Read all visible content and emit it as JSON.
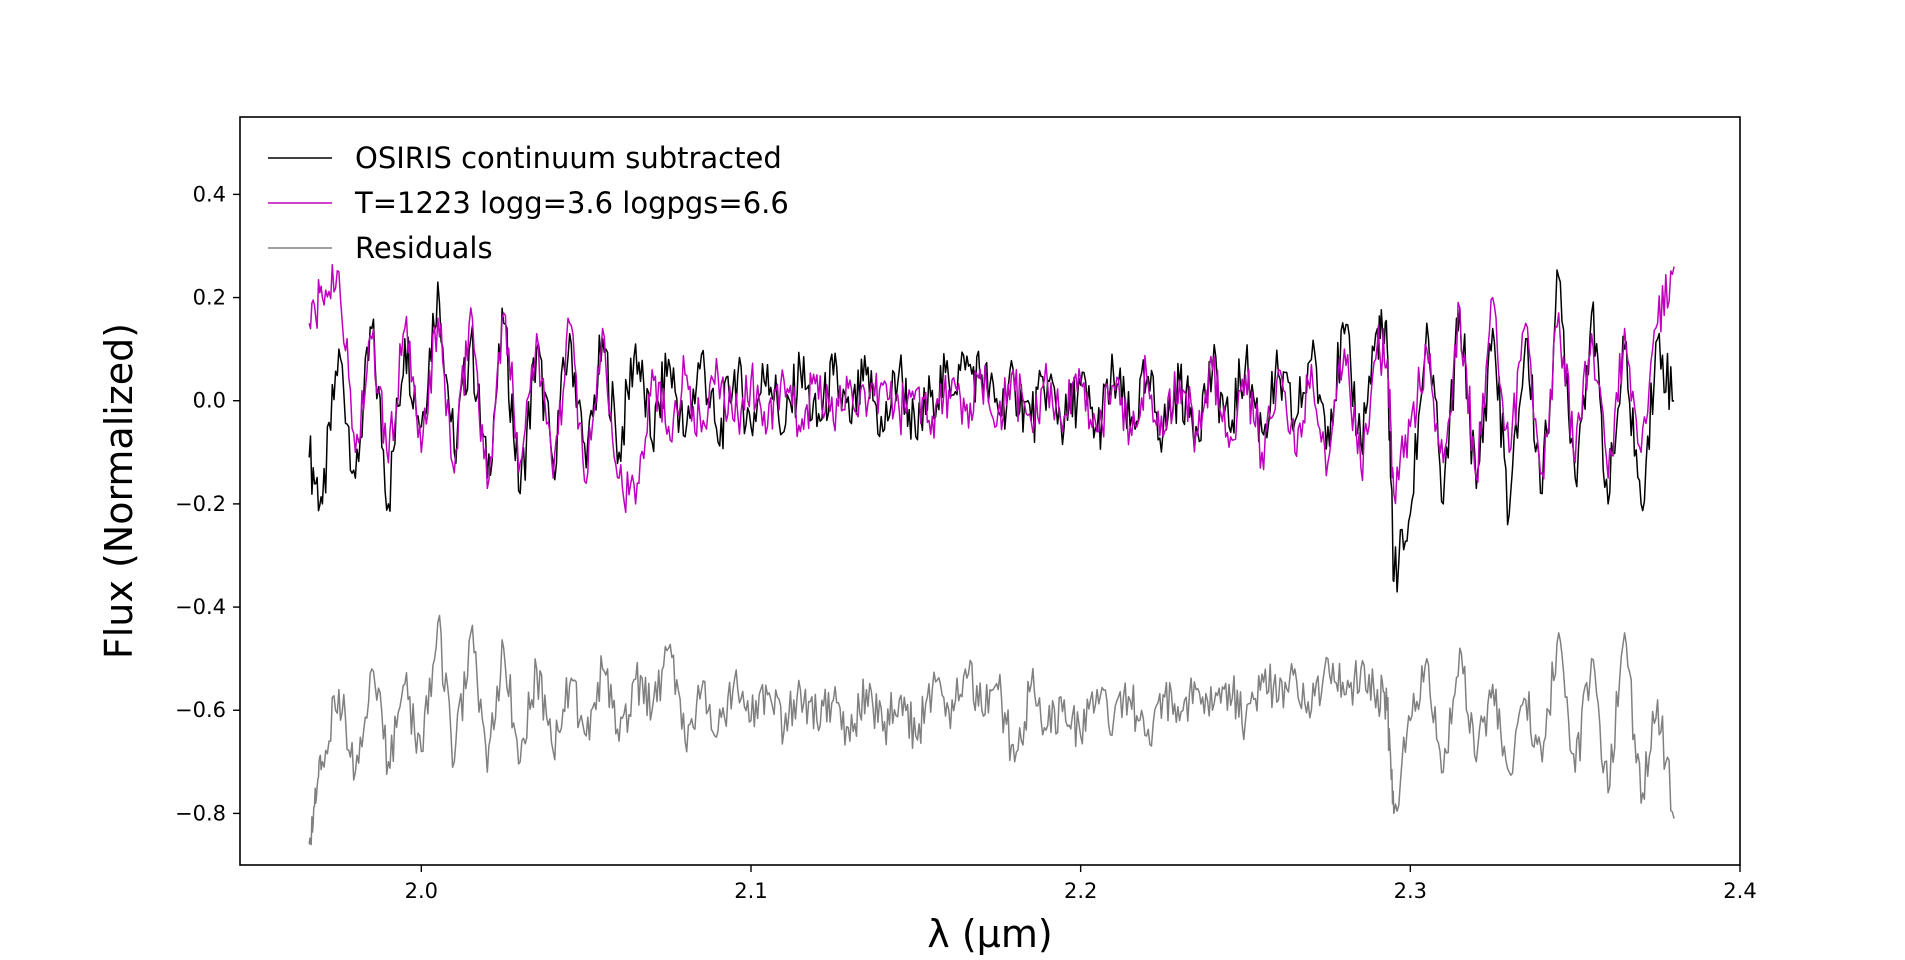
{
  "chart_data": {
    "type": "line",
    "title": "",
    "xlabel": "λ (μm)",
    "ylabel": "Flux (Normalized)",
    "xlim": [
      1.945,
      2.4
    ],
    "ylim": [
      -0.9,
      0.55
    ],
    "xticks": [
      {
        "value": 2.0,
        "label": "2.0"
      },
      {
        "value": 2.1,
        "label": "2.1"
      },
      {
        "value": 2.2,
        "label": "2.2"
      },
      {
        "value": 2.3,
        "label": "2.3"
      },
      {
        "value": 2.4,
        "label": "2.4"
      }
    ],
    "yticks": [
      {
        "value": 0.4,
        "label": "0.4"
      },
      {
        "value": 0.2,
        "label": "0.2"
      },
      {
        "value": 0.0,
        "label": "0.0"
      },
      {
        "value": -0.2,
        "label": "−0.2"
      },
      {
        "value": -0.4,
        "label": "−0.4"
      },
      {
        "value": -0.6,
        "label": "−0.6"
      },
      {
        "value": -0.8,
        "label": "−0.8"
      }
    ],
    "grid": false,
    "legend_position": "top-left",
    "series": [
      {
        "name": "OSIRIS continuum subtracted",
        "color": "#000000",
        "x": [
          1.966,
          1.97,
          1.975,
          1.98,
          1.985,
          1.99,
          1.995,
          2.0,
          2.005,
          2.01,
          2.015,
          2.02,
          2.025,
          2.03,
          2.035,
          2.04,
          2.045,
          2.05,
          2.055,
          2.06,
          2.065,
          2.07,
          2.075,
          2.08,
          2.085,
          2.09,
          2.095,
          2.1,
          2.105,
          2.11,
          2.115,
          2.12,
          2.125,
          2.13,
          2.135,
          2.14,
          2.145,
          2.15,
          2.155,
          2.16,
          2.165,
          2.17,
          2.175,
          2.18,
          2.185,
          2.19,
          2.195,
          2.2,
          2.205,
          2.21,
          2.215,
          2.22,
          2.225,
          2.23,
          2.235,
          2.24,
          2.245,
          2.25,
          2.255,
          2.26,
          2.265,
          2.27,
          2.275,
          2.28,
          2.285,
          2.29,
          2.293,
          2.295,
          2.3,
          2.305,
          2.31,
          2.315,
          2.32,
          2.325,
          2.33,
          2.335,
          2.34,
          2.345,
          2.35,
          2.355,
          2.36,
          2.365,
          2.37,
          2.375,
          2.38
        ],
        "y": [
          -0.11,
          -0.2,
          0.1,
          -0.15,
          0.14,
          -0.2,
          0.12,
          -0.05,
          0.23,
          -0.1,
          0.12,
          -0.15,
          0.15,
          -0.18,
          0.1,
          -0.12,
          0.13,
          -0.13,
          0.12,
          -0.1,
          0.11,
          -0.08,
          0.08,
          -0.07,
          0.09,
          -0.08,
          0.06,
          -0.05,
          0.07,
          -0.06,
          0.06,
          -0.05,
          0.05,
          -0.04,
          0.05,
          -0.06,
          0.06,
          -0.07,
          0.02,
          0.04,
          0.06,
          0.05,
          -0.02,
          0.03,
          -0.04,
          0.04,
          -0.05,
          0.03,
          -0.06,
          0.05,
          -0.05,
          0.04,
          -0.06,
          0.03,
          -0.05,
          0.06,
          -0.05,
          0.07,
          -0.06,
          0.05,
          -0.04,
          0.08,
          -0.05,
          0.13,
          -0.08,
          0.14,
          0.1,
          -0.35,
          -0.22,
          0.15,
          -0.2,
          0.18,
          -0.17,
          0.14,
          -0.22,
          0.12,
          -0.18,
          0.24,
          -0.15,
          0.17,
          -0.2,
          0.1,
          -0.2,
          0.12,
          0.0
        ]
      },
      {
        "name": "T=1223 logg=3.6 logpgs=6.6",
        "color": "#bf00bf",
        "x": [
          1.966,
          1.97,
          1.975,
          1.98,
          1.985,
          1.99,
          1.995,
          2.0,
          2.005,
          2.01,
          2.015,
          2.02,
          2.025,
          2.03,
          2.035,
          2.04,
          2.045,
          2.05,
          2.055,
          2.06,
          2.065,
          2.07,
          2.075,
          2.08,
          2.085,
          2.09,
          2.095,
          2.1,
          2.105,
          2.11,
          2.115,
          2.12,
          2.125,
          2.13,
          2.135,
          2.14,
          2.145,
          2.15,
          2.155,
          2.16,
          2.165,
          2.17,
          2.175,
          2.18,
          2.185,
          2.19,
          2.195,
          2.2,
          2.205,
          2.21,
          2.215,
          2.22,
          2.225,
          2.23,
          2.235,
          2.24,
          2.245,
          2.25,
          2.255,
          2.26,
          2.265,
          2.27,
          2.275,
          2.28,
          2.285,
          2.29,
          2.293,
          2.295,
          2.3,
          2.305,
          2.31,
          2.315,
          2.32,
          2.325,
          2.33,
          2.335,
          2.34,
          2.345,
          2.35,
          2.355,
          2.36,
          2.365,
          2.37,
          2.375,
          2.38
        ],
        "y": [
          0.15,
          0.2,
          0.25,
          -0.1,
          0.12,
          -0.12,
          0.14,
          -0.1,
          0.16,
          -0.14,
          0.18,
          -0.17,
          0.17,
          -0.12,
          0.13,
          -0.15,
          0.15,
          -0.16,
          0.14,
          -0.15,
          -0.2,
          0.06,
          -0.05,
          0.05,
          -0.06,
          0.05,
          -0.04,
          0.04,
          -0.05,
          0.04,
          -0.06,
          0.05,
          -0.04,
          0.04,
          -0.03,
          0.03,
          -0.02,
          0.02,
          -0.03,
          0.02,
          -0.02,
          0.03,
          -0.02,
          0.02,
          -0.04,
          0.03,
          -0.03,
          0.04,
          -0.06,
          0.03,
          -0.05,
          0.05,
          -0.07,
          0.04,
          -0.06,
          0.06,
          -0.09,
          0.05,
          -0.1,
          0.06,
          -0.1,
          0.07,
          -0.12,
          0.1,
          -0.13,
          0.11,
          0.08,
          -0.18,
          -0.05,
          0.1,
          -0.12,
          0.18,
          -0.15,
          0.2,
          -0.1,
          0.15,
          -0.14,
          0.17,
          -0.12,
          0.13,
          -0.15,
          0.14,
          -0.1,
          0.15,
          0.26
        ]
      },
      {
        "name": "Residuals",
        "color": "#808080",
        "x": [
          1.966,
          1.968,
          1.97,
          1.975,
          1.98,
          1.985,
          1.99,
          1.995,
          2.0,
          2.005,
          2.01,
          2.015,
          2.02,
          2.025,
          2.03,
          2.035,
          2.04,
          2.045,
          2.05,
          2.055,
          2.06,
          2.065,
          2.07,
          2.075,
          2.08,
          2.085,
          2.09,
          2.095,
          2.1,
          2.105,
          2.11,
          2.115,
          2.12,
          2.125,
          2.13,
          2.135,
          2.14,
          2.145,
          2.15,
          2.155,
          2.16,
          2.165,
          2.17,
          2.175,
          2.18,
          2.185,
          2.19,
          2.195,
          2.2,
          2.205,
          2.21,
          2.215,
          2.22,
          2.225,
          2.23,
          2.235,
          2.24,
          2.245,
          2.25,
          2.255,
          2.26,
          2.265,
          2.27,
          2.275,
          2.28,
          2.285,
          2.29,
          2.293,
          2.295,
          2.3,
          2.305,
          2.31,
          2.315,
          2.32,
          2.325,
          2.33,
          2.335,
          2.34,
          2.345,
          2.35,
          2.355,
          2.36,
          2.365,
          2.37,
          2.375,
          2.38
        ],
        "y": [
          -0.86,
          -0.78,
          -0.7,
          -0.56,
          -0.72,
          -0.52,
          -0.7,
          -0.55,
          -0.68,
          -0.43,
          -0.7,
          -0.45,
          -0.72,
          -0.48,
          -0.7,
          -0.52,
          -0.68,
          -0.55,
          -0.65,
          -0.52,
          -0.66,
          -0.54,
          -0.6,
          -0.48,
          -0.66,
          -0.56,
          -0.64,
          -0.54,
          -0.62,
          -0.57,
          -0.64,
          -0.56,
          -0.62,
          -0.58,
          -0.66,
          -0.56,
          -0.64,
          -0.58,
          -0.65,
          -0.56,
          -0.6,
          -0.52,
          -0.6,
          -0.56,
          -0.7,
          -0.55,
          -0.63,
          -0.58,
          -0.65,
          -0.56,
          -0.62,
          -0.58,
          -0.65,
          -0.57,
          -0.62,
          -0.56,
          -0.6,
          -0.55,
          -0.62,
          -0.53,
          -0.58,
          -0.52,
          -0.6,
          -0.5,
          -0.57,
          -0.52,
          -0.56,
          -0.6,
          -0.8,
          -0.62,
          -0.5,
          -0.72,
          -0.48,
          -0.7,
          -0.55,
          -0.72,
          -0.58,
          -0.7,
          -0.45,
          -0.72,
          -0.5,
          -0.76,
          -0.45,
          -0.78,
          -0.58,
          -0.81
        ]
      }
    ]
  }
}
